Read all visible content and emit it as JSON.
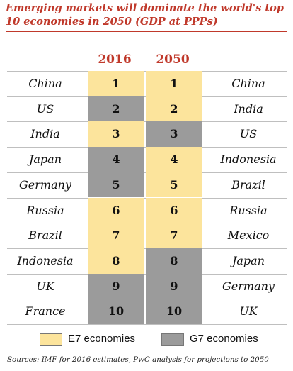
{
  "title": "Emerging markets will dominate the world's top 10 economies in 2050 (GDP at PPPs)",
  "source": "Sources: IMF for 2016 estimates, PwC analysis for projections to 2050",
  "colors": {
    "e7": "#fce49c",
    "g7": "#9b9b9b",
    "title": "#c0392b",
    "grid": "#bfbfbf"
  },
  "legend": [
    {
      "label": "E7 economies",
      "group": "e7"
    },
    {
      "label": "G7 economies",
      "group": "g7"
    }
  ],
  "chart_data": {
    "type": "table",
    "title": "Emerging markets will dominate the world's top 10 economies in 2050 (GDP at PPPs)",
    "columns": [
      "2016",
      "2050"
    ],
    "rows": [
      {
        "rank": "1",
        "country_2016": "China",
        "group_2016": "e7",
        "country_2050": "China",
        "group_2050": "e7"
      },
      {
        "rank": "2",
        "country_2016": "US",
        "group_2016": "g7",
        "country_2050": "India",
        "group_2050": "e7"
      },
      {
        "rank": "3",
        "country_2016": "India",
        "group_2016": "e7",
        "country_2050": "US",
        "group_2050": "g7"
      },
      {
        "rank": "4",
        "country_2016": "Japan",
        "group_2016": "g7",
        "country_2050": "Indonesia",
        "group_2050": "e7"
      },
      {
        "rank": "5",
        "country_2016": "Germany",
        "group_2016": "g7",
        "country_2050": "Brazil",
        "group_2050": "e7"
      },
      {
        "rank": "6",
        "country_2016": "Russia",
        "group_2016": "e7",
        "country_2050": "Russia",
        "group_2050": "e7"
      },
      {
        "rank": "7",
        "country_2016": "Brazil",
        "group_2016": "e7",
        "country_2050": "Mexico",
        "group_2050": "e7"
      },
      {
        "rank": "8",
        "country_2016": "Indonesia",
        "group_2016": "e7",
        "country_2050": "Japan",
        "group_2050": "g7"
      },
      {
        "rank": "9",
        "country_2016": "UK",
        "group_2016": "g7",
        "country_2050": "Germany",
        "group_2050": "g7"
      },
      {
        "rank": "10",
        "country_2016": "France",
        "group_2016": "g7",
        "country_2050": "UK",
        "group_2050": "g7"
      }
    ]
  }
}
